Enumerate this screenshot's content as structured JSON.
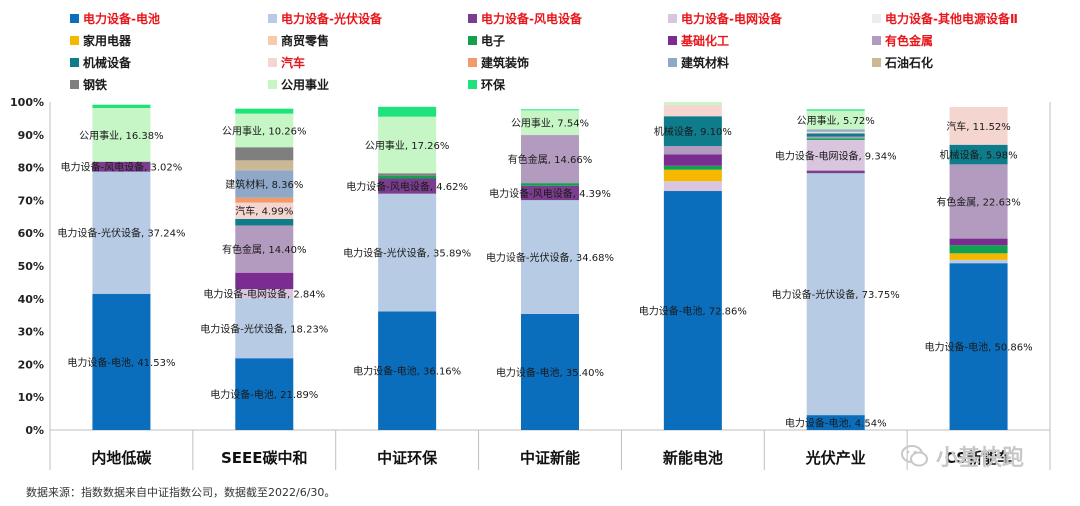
{
  "chart_data": {
    "type": "bar",
    "stacked": true,
    "categories": [
      "内地低碳",
      "SEEE碳中和",
      "中证环保",
      "中证新能",
      "新能电池",
      "光伏产业",
      "CS新能车"
    ],
    "ylim": [
      0,
      100
    ],
    "yticks": [
      "0%",
      "10%",
      "20%",
      "30%",
      "40%",
      "50%",
      "60%",
      "70%",
      "80%",
      "90%",
      "100%"
    ],
    "grid": false,
    "legend_position": "top",
    "series": [
      {
        "name": "电力设备-电池",
        "color": "#0A6EBD",
        "legend_color": "#e8161b",
        "values": [
          41.53,
          21.89,
          36.16,
          35.4,
          72.86,
          4.54,
          50.86
        ],
        "labels": [
          "电力设备-电池, 41.53%",
          "电力设备-电池, 21.89%",
          "电力设备-电池, 36.16%",
          "电力设备-电池, 35.40%",
          "电力设备-电池, 72.86%",
          "电力设备-电池, 4.54%",
          "电力设备-电池, 50.86%"
        ]
      },
      {
        "name": "电力设备-光伏设备",
        "color": "#B7CCE4",
        "legend_color": "#e8161b",
        "values": [
          37.24,
          18.23,
          35.89,
          34.68,
          0,
          73.75,
          1.0
        ],
        "labels": [
          "电力设备-光伏设备, 37.24%",
          "电力设备-光伏设备, 18.23%",
          "电力设备-光伏设备, 35.89%",
          "电力设备-光伏设备, 34.68%",
          "",
          "电力设备-光伏设备, 73.75%",
          ""
        ]
      },
      {
        "name": "电力设备-风电设备",
        "color": "#7B3D8D",
        "legend_color": "#e8161b",
        "values": [
          3.02,
          0,
          4.62,
          4.39,
          0,
          0.8,
          0
        ],
        "labels": [
          "电力设备-风电设备, 3.02%",
          "",
          "电力设备-风电设备, 4.62%",
          "电力设备-风电设备, 4.39%",
          "",
          "",
          ""
        ]
      },
      {
        "name": "电力设备-电网设备",
        "color": "#D9C6DE",
        "legend_color": "#e8161b",
        "values": [
          0,
          2.84,
          0,
          0,
          3.0,
          9.34,
          0
        ],
        "labels": [
          "",
          "电力设备-电网设备, 2.84%",
          "",
          "",
          "",
          "电力设备-电网设备, 9.34%",
          ""
        ]
      },
      {
        "name": "电力设备-其他电源设备Ⅱ",
        "color": "#EDEDED",
        "legend_color": "#e8161b",
        "values": [
          0,
          0,
          0,
          0,
          0,
          0,
          0
        ],
        "labels": [
          "",
          "",
          "",
          "",
          "",
          "",
          ""
        ]
      },
      {
        "name": "家用电器",
        "color": "#F5B700",
        "legend_color": "#1a1a1a",
        "values": [
          0,
          0,
          0,
          0,
          3.5,
          0,
          2.0
        ],
        "labels": [
          "",
          "",
          "",
          "",
          "",
          "",
          ""
        ]
      },
      {
        "name": "商贸零售",
        "color": "#F7CBA9",
        "legend_color": "#1a1a1a",
        "values": [
          0,
          0,
          0,
          0,
          0,
          0,
          0
        ],
        "labels": [
          "",
          "",
          "",
          "",
          "",
          "",
          ""
        ]
      },
      {
        "name": "电子",
        "color": "#12A150",
        "legend_color": "#1a1a1a",
        "values": [
          0,
          0,
          0.8,
          0.8,
          1.2,
          0.5,
          2.5
        ],
        "labels": [
          "",
          "",
          "",
          "",
          "",
          "",
          ""
        ]
      },
      {
        "name": "基础化工",
        "color": "#7B2C91",
        "legend_color": "#e8161b",
        "values": [
          0,
          5.0,
          0,
          0,
          3.5,
          0,
          2.0
        ],
        "labels": [
          "",
          "",
          "",
          "",
          "",
          "",
          ""
        ]
      },
      {
        "name": "有色金属",
        "color": "#B39BBF",
        "legend_color": "#e8161b",
        "values": [
          0,
          14.4,
          0,
          14.66,
          2.5,
          0.5,
          22.63
        ],
        "labels": [
          "",
          "有色金属, 14.40%",
          "",
          "有色金属, 14.66%",
          "",
          "",
          "有色金属, 22.63%"
        ]
      },
      {
        "name": "机械设备",
        "color": "#0F7C8C",
        "legend_color": "#1a1a1a",
        "values": [
          0,
          2.0,
          0,
          0,
          9.1,
          1.0,
          5.98
        ],
        "labels": [
          "",
          "",
          "",
          "",
          "机械设备, 9.10%",
          "",
          "机械设备, 5.98%"
        ]
      },
      {
        "name": "汽车",
        "color": "#F5D5D0",
        "legend_color": "#e8161b",
        "values": [
          0,
          4.99,
          0,
          0,
          3.5,
          0.5,
          11.52
        ],
        "labels": [
          "",
          "汽车, 4.99%",
          "",
          "",
          "",
          "",
          "汽车, 11.52%"
        ]
      },
      {
        "name": "建筑装饰",
        "color": "#F39A6B",
        "legend_color": "#1a1a1a",
        "values": [
          0,
          1.5,
          0,
          0,
          0,
          0,
          0
        ],
        "labels": [
          "",
          "",
          "",
          "",
          "",
          "",
          ""
        ]
      },
      {
        "name": "建筑材料",
        "color": "#8FA8C8",
        "legend_color": "#1a1a1a",
        "values": [
          0,
          8.36,
          0,
          0,
          0,
          0.7,
          0
        ],
        "labels": [
          "",
          "建筑材料, 8.36%",
          "",
          "",
          "",
          "",
          ""
        ]
      },
      {
        "name": "石油石化",
        "color": "#CBB996",
        "legend_color": "#1a1a1a",
        "values": [
          0,
          3.0,
          0,
          0,
          0,
          0,
          0
        ],
        "labels": [
          "",
          "",
          "",
          "",
          "",
          "",
          ""
        ]
      },
      {
        "name": "钢铁",
        "color": "#7F7F7F",
        "legend_color": "#1a1a1a",
        "values": [
          0,
          4.0,
          0.8,
          0,
          0,
          0,
          0
        ],
        "labels": [
          "",
          "",
          "",
          "",
          "",
          "",
          ""
        ]
      },
      {
        "name": "公用事业",
        "color": "#C6F5C6",
        "legend_color": "#1a1a1a",
        "values": [
          16.38,
          10.26,
          17.26,
          7.54,
          0.8,
          5.72,
          0
        ],
        "labels": [
          "公用事业, 16.38%",
          "公用事业, 10.26%",
          "公用事业, 17.26%",
          "公用事业, 7.54%",
          "",
          "公用事业, 5.72%",
          ""
        ]
      },
      {
        "name": "环保",
        "color": "#1EE37A",
        "legend_color": "#1a1a1a",
        "values": [
          1.0,
          1.5,
          3.0,
          0.3,
          0,
          0.4,
          0
        ],
        "labels": [
          "",
          "",
          "",
          "",
          "",
          "",
          ""
        ]
      }
    ]
  },
  "source_text": "数据来源：指数数据来自中证指数公司，数据截至2022/6/30。",
  "watermark_text": "小基快跑"
}
